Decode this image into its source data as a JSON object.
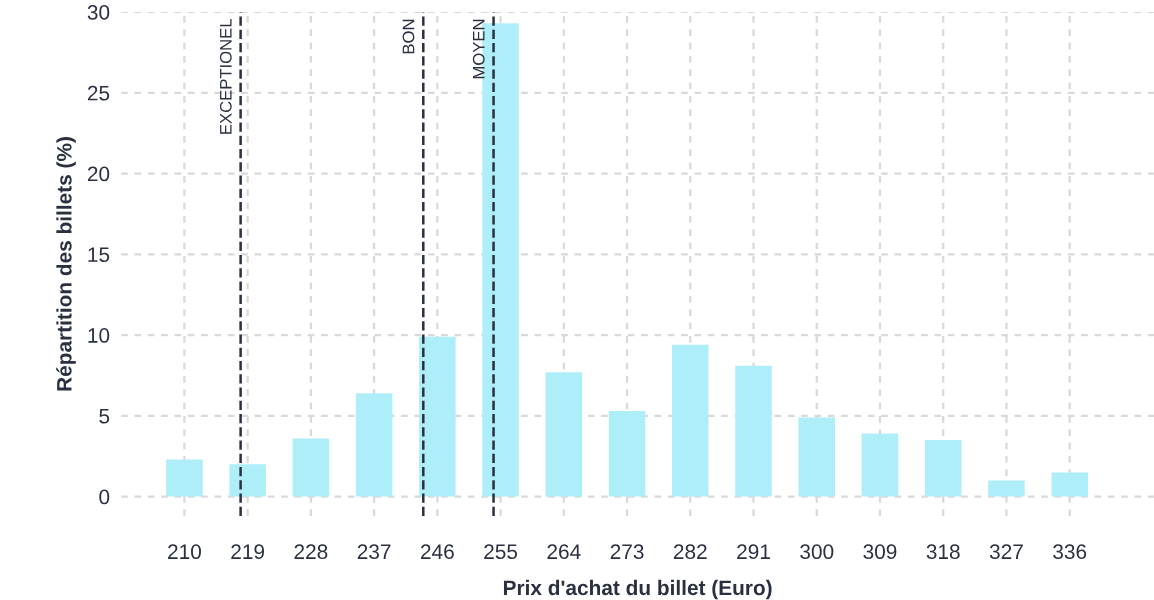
{
  "chart_data": {
    "type": "bar",
    "xlabel": "Prix d'achat du billet (Euro)",
    "ylabel": "Répartition des billets (%)",
    "x": [
      210,
      219,
      228,
      237,
      246,
      255,
      264,
      273,
      282,
      291,
      300,
      309,
      318,
      327,
      336
    ],
    "values": [
      2.3,
      2.0,
      3.6,
      6.4,
      9.9,
      29.3,
      7.7,
      5.3,
      9.4,
      8.1,
      4.9,
      3.9,
      3.5,
      1.0,
      1.5
    ],
    "color": "#aeeef8",
    "xlim": [
      201,
      348
    ],
    "xticks": [
      210,
      219,
      228,
      237,
      246,
      255,
      264,
      273,
      282,
      291,
      300,
      309,
      318,
      327,
      336
    ],
    "ylim": [
      -1.2,
      30
    ],
    "yticks": [
      0,
      5,
      10,
      15,
      20,
      25,
      30
    ],
    "ref_lines": [
      {
        "axis": "x",
        "value": 218,
        "label": "EXCEPTIONEL",
        "color": "#2a3040",
        "line_style": "dashed"
      },
      {
        "axis": "x",
        "value": 244,
        "label": "BON",
        "color": "#2a3040",
        "line_style": "dashed"
      },
      {
        "axis": "x",
        "value": 254,
        "label": "MOYEN",
        "color": "#2a3040",
        "line_style": "dashed"
      }
    ],
    "grid": true,
    "legend": false
  }
}
